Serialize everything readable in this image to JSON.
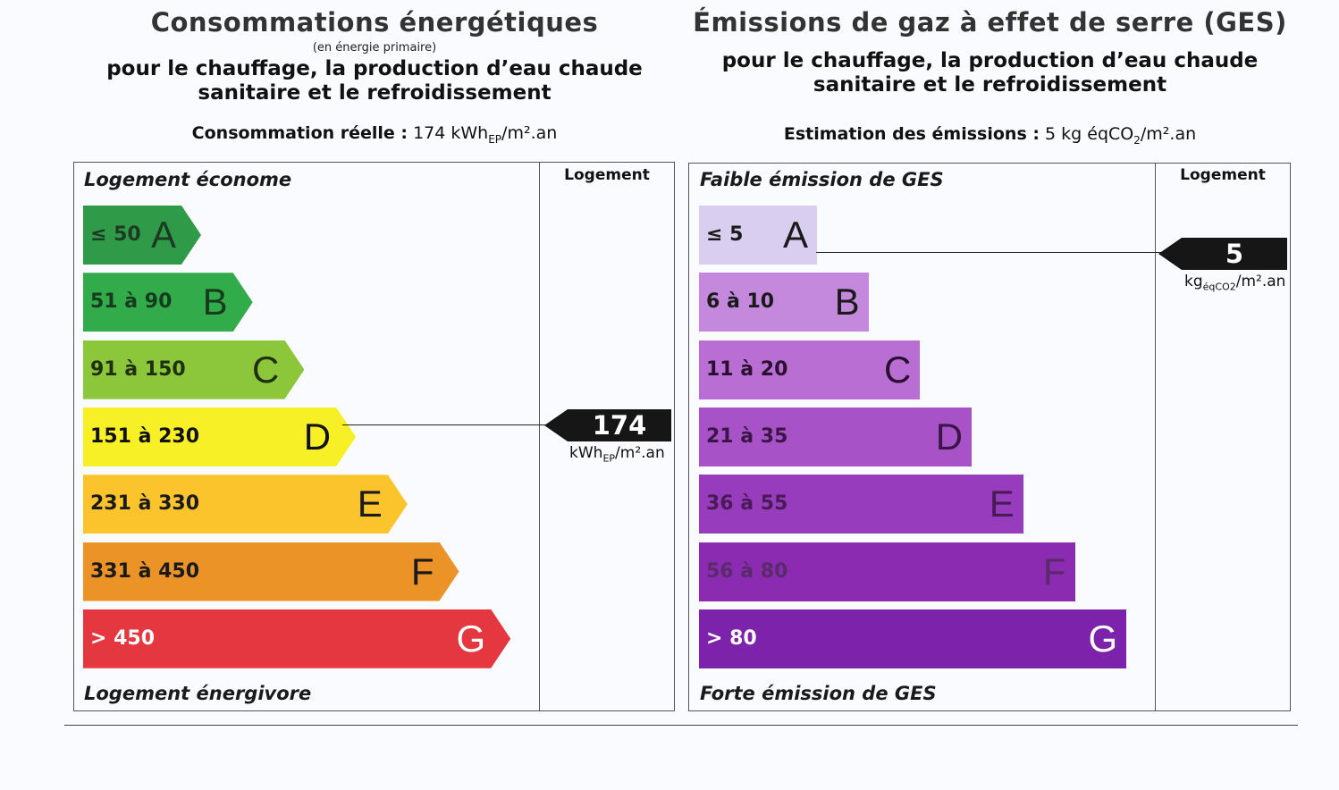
{
  "energy": {
    "title": "Consommations énergétiques",
    "title_note": "(en énergie primaire)",
    "subtitle_line1": "pour le chauffage, la production d’eau chaude",
    "subtitle_line2": "sanitaire et le refroidissement",
    "estimate_label": "Consommation réelle :",
    "estimate_value": "174 kWh",
    "estimate_sub": "EP",
    "estimate_unit": "/m².an",
    "column_header": "Logement",
    "top_caption": "Logement économe",
    "bottom_caption": "Logement énergivore",
    "classes": [
      {
        "range": "≤ 50",
        "letter": "A",
        "color": "#2f9a47",
        "text_color": "#1d3b24"
      },
      {
        "range": "51 à 90",
        "letter": "B",
        "color": "#32ab4b",
        "text_color": "#163b1f"
      },
      {
        "range": "91 à 150",
        "letter": "C",
        "color": "#8cc63a",
        "text_color": "#1f3010"
      },
      {
        "range": "151 à 230",
        "letter": "D",
        "color": "#f7f026",
        "text_color": "#111111"
      },
      {
        "range": "231 à 330",
        "letter": "E",
        "color": "#fcc42c",
        "text_color": "#1a1a1a"
      },
      {
        "range": "331 à 450",
        "letter": "F",
        "color": "#ec9328",
        "text_color": "#1a1a1a"
      },
      {
        "range": "> 450",
        "letter": "G",
        "color": "#e5373f",
        "text_color": "#ffffff"
      }
    ],
    "current_value": "174",
    "current_class_index": 3,
    "unit_main": "kWh",
    "unit_sub": "EP",
    "unit_tail": "/m².an"
  },
  "ges": {
    "title": "Émissions de gaz à effet de serre (GES)",
    "subtitle_line1": "pour le chauffage, la production d’eau chaude",
    "subtitle_line2": "sanitaire et le refroidissement",
    "estimate_label": "Estimation des émissions :",
    "estimate_value": "5 kg éqCO",
    "estimate_sub": "2",
    "estimate_unit": "/m².an",
    "column_header": "Logement",
    "top_caption": "Faible émission de GES",
    "bottom_caption": "Forte émission de GES",
    "classes": [
      {
        "range": "≤ 5",
        "letter": "A",
        "color": "#d9cdf0",
        "text_color": "#1a1a1a"
      },
      {
        "range": "6 à 10",
        "letter": "B",
        "color": "#c489dd",
        "text_color": "#1a1a1a"
      },
      {
        "range": "11 à 20",
        "letter": "C",
        "color": "#b86ed3",
        "text_color": "#2a1030"
      },
      {
        "range": "21 à 35",
        "letter": "D",
        "color": "#a753c7",
        "text_color": "#3a1545"
      },
      {
        "range": "36 à 55",
        "letter": "E",
        "color": "#973cbd",
        "text_color": "#4a1a55"
      },
      {
        "range": "56 à 80",
        "letter": "F",
        "color": "#8a2bb2",
        "text_color": "#5a2a6a"
      },
      {
        "range": "> 80",
        "letter": "G",
        "color": "#7c22ab",
        "text_color": "#ffffff"
      }
    ],
    "current_value": "5",
    "current_class_index": 0,
    "unit_main": "kg",
    "unit_sub": "éqCO2",
    "unit_tail": "/m².an"
  }
}
